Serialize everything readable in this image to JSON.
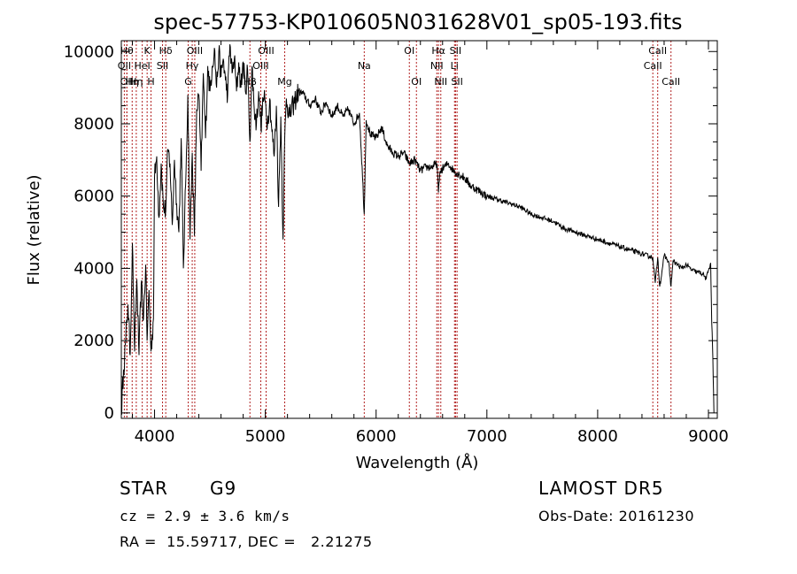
{
  "chart_data": {
    "type": "line",
    "title": "spec-57753-KP010605N031628V01_sp05-193.fits",
    "xlabel": "Wavelength (Å)",
    "ylabel": "Flux (relative)",
    "xlim": [
      3700,
      9080
    ],
    "ylim": [
      -150,
      10300
    ],
    "x_ticks": [
      4000,
      5000,
      6000,
      7000,
      8000,
      9000
    ],
    "y_ticks": [
      0,
      2000,
      4000,
      6000,
      8000,
      10000
    ],
    "grid": false,
    "series": [
      {
        "x": [
          3700,
          3720,
          3740,
          3760,
          3780,
          3800,
          3820,
          3840,
          3860,
          3880,
          3900,
          3920,
          3933,
          3950,
          3968,
          3990,
          4000,
          4020,
          4040,
          4060,
          4080,
          4101,
          4120,
          4140,
          4160,
          4180,
          4200,
          4220,
          4240,
          4260,
          4280,
          4300,
          4320,
          4340,
          4360,
          4380,
          4400,
          4420,
          4440,
          4460,
          4480,
          4500,
          4520,
          4540,
          4560,
          4580,
          4600,
          4620,
          4640,
          4660,
          4680,
          4700,
          4720,
          4740,
          4760,
          4780,
          4800,
          4820,
          4840,
          4861,
          4880,
          4900,
          4920,
          4940,
          4960,
          4980,
          5000,
          5020,
          5040,
          5060,
          5080,
          5100,
          5120,
          5140,
          5160,
          5175,
          5190,
          5220,
          5250,
          5300,
          5350,
          5400,
          5450,
          5500,
          5550,
          5600,
          5650,
          5700,
          5750,
          5800,
          5850,
          5893,
          5910,
          5950,
          6000,
          6050,
          6100,
          6150,
          6200,
          6250,
          6300,
          6350,
          6400,
          6450,
          6500,
          6550,
          6563,
          6580,
          6650,
          6700,
          6750,
          6800,
          6850,
          6900,
          6950,
          7000,
          7100,
          7200,
          7300,
          7400,
          7500,
          7600,
          7700,
          7800,
          7900,
          8000,
          8100,
          8200,
          8300,
          8400,
          8498,
          8520,
          8542,
          8560,
          8600,
          8640,
          8662,
          8680,
          8720,
          8760,
          8800,
          8850,
          8900,
          8950,
          8980,
          9000,
          9020,
          9030,
          9040,
          9050
        ],
        "y": [
          0,
          1200,
          2000,
          3000,
          1600,
          4700,
          1700,
          3700,
          1600,
          3600,
          2600,
          4100,
          2000,
          3400,
          1700,
          2600,
          6500,
          7100,
          5400,
          6900,
          5700,
          5600,
          7300,
          6900,
          5200,
          7000,
          5800,
          5000,
          7600,
          4000,
          6300,
          8800,
          4800,
          7200,
          4900,
          8400,
          8800,
          6700,
          9400,
          7600,
          9600,
          8900,
          9600,
          10100,
          9000,
          10000,
          9300,
          9800,
          9200,
          8800,
          10200,
          9400,
          9800,
          8900,
          9700,
          9000,
          9700,
          8900,
          9500,
          7500,
          9600,
          8400,
          8000,
          8900,
          7900,
          8700,
          8600,
          8000,
          8700,
          7800,
          7100,
          8500,
          5700,
          8200,
          4800,
          7600,
          8700,
          8200,
          8500,
          8900,
          8800,
          8500,
          8700,
          8300,
          8600,
          8200,
          8500,
          8200,
          8400,
          8000,
          8300,
          5500,
          8100,
          7700,
          7600,
          7900,
          7400,
          7200,
          7100,
          7200,
          6900,
          7000,
          6700,
          6800,
          6800,
          6900,
          6100,
          6700,
          6900,
          6700,
          6600,
          6500,
          6300,
          6200,
          6100,
          6000,
          5900,
          5800,
          5700,
          5500,
          5400,
          5300,
          5100,
          5000,
          4900,
          4800,
          4700,
          4600,
          4500,
          4400,
          4300,
          3600,
          4300,
          3500,
          4350,
          4200,
          3500,
          4200,
          4100,
          4000,
          4100,
          3950,
          3900,
          3850,
          3700,
          3950,
          4150,
          2500,
          1500,
          0
        ]
      }
    ],
    "lines": [
      {
        "x": 3750,
        "label": "Hθ",
        "row": 1
      },
      {
        "x": 3727,
        "label": "OII",
        "row": 2
      },
      {
        "x": 3750,
        "label": "OII",
        "row": 3
      },
      {
        "x": 3798,
        "label": "Hη",
        "row": 3
      },
      {
        "x": 3835,
        "label": "Hη",
        "row": 3
      },
      {
        "x": 3889,
        "label": "HeI",
        "row": 2
      },
      {
        "x": 3933,
        "label": "K",
        "row": 1
      },
      {
        "x": 3968,
        "label": "H",
        "row": 3
      },
      {
        "x": 4072,
        "label": "SII",
        "row": 2
      },
      {
        "x": 4101,
        "label": "Hδ",
        "row": 1
      },
      {
        "x": 4304,
        "label": "G",
        "row": 3
      },
      {
        "x": 4340,
        "label": "Hγ",
        "row": 2
      },
      {
        "x": 4363,
        "label": "OIII",
        "row": 1
      },
      {
        "x": 4861,
        "label": "Hβ",
        "row": 3
      },
      {
        "x": 4959,
        "label": "OIII",
        "row": 2
      },
      {
        "x": 5007,
        "label": "OIII",
        "row": 1
      },
      {
        "x": 5175,
        "label": "Mg",
        "row": 3
      },
      {
        "x": 5893,
        "label": "Na",
        "row": 2
      },
      {
        "x": 6300,
        "label": "OI",
        "row": 1
      },
      {
        "x": 6364,
        "label": "OI",
        "row": 3
      },
      {
        "x": 6548,
        "label": "NII",
        "row": 2
      },
      {
        "x": 6563,
        "label": "Hα",
        "row": 1
      },
      {
        "x": 6584,
        "label": "NII",
        "row": 3
      },
      {
        "x": 6708,
        "label": "Li",
        "row": 2
      },
      {
        "x": 6717,
        "label": "SII",
        "row": 1
      },
      {
        "x": 6731,
        "label": "SII",
        "row": 3
      },
      {
        "x": 8498,
        "label": "CaII",
        "row": 2
      },
      {
        "x": 8542,
        "label": "CaII",
        "row": 1
      },
      {
        "x": 8662,
        "label": "CaII",
        "row": 3
      }
    ],
    "line_color": "#b22222"
  },
  "info": {
    "object_class": "STAR",
    "subclass": "G9",
    "survey": "LAMOST DR5",
    "redshift": "cz = 2.9 ± 3.6 km/s",
    "obs_date": "Obs-Date: 20161230",
    "coords": "RA =  15.59717, DEC =   2.21275"
  }
}
